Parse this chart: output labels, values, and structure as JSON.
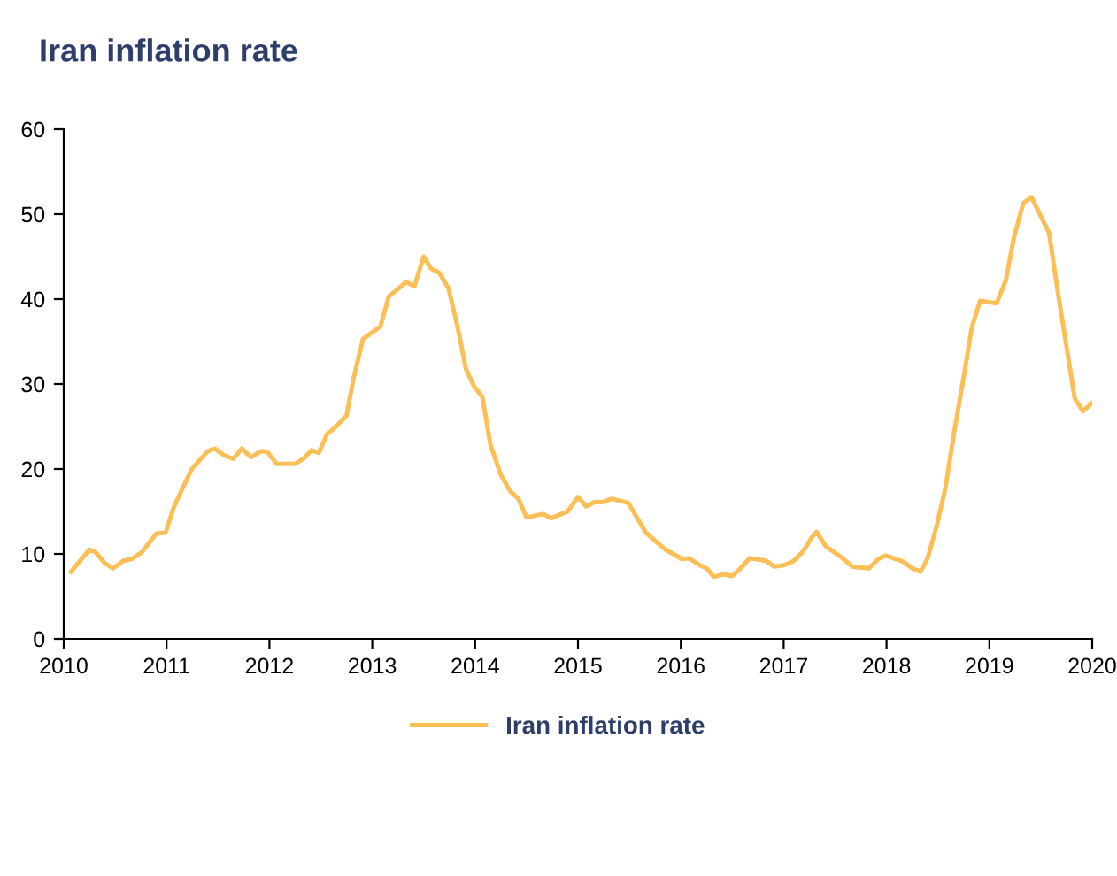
{
  "chart_data": {
    "type": "line",
    "title": "Iran inflation rate",
    "series": [
      {
        "name": "Iran inflation rate",
        "color": "#fbbf55",
        "x": [
          2010.07,
          2010.25,
          2010.31,
          2010.4,
          2010.48,
          2010.58,
          2010.66,
          2010.76,
          2010.9,
          2010.99,
          2011.07,
          2011.24,
          2011.4,
          2011.47,
          2011.56,
          2011.65,
          2011.73,
          2011.82,
          2011.92,
          2011.98,
          2012.07,
          2012.25,
          2012.33,
          2012.41,
          2012.48,
          2012.56,
          2012.64,
          2012.75,
          2012.82,
          2012.91,
          2013.08,
          2013.16,
          2013.33,
          2013.41,
          2013.5,
          2013.57,
          2013.65,
          2013.74,
          2013.83,
          2013.91,
          2013.99,
          2014.07,
          2014.15,
          2014.25,
          2014.34,
          2014.42,
          2014.5,
          2014.66,
          2014.74,
          2014.9,
          2015.0,
          2015.08,
          2015.16,
          2015.24,
          2015.33,
          2015.49,
          2015.66,
          2015.84,
          2016.01,
          2016.08,
          2016.18,
          2016.25,
          2016.32,
          2016.41,
          2016.5,
          2016.58,
          2016.67,
          2016.83,
          2016.91,
          2017.01,
          2017.1,
          2017.19,
          2017.27,
          2017.32,
          2017.41,
          2017.56,
          2017.67,
          2017.83,
          2017.92,
          2017.99,
          2018.16,
          2018.25,
          2018.33,
          2018.4,
          2018.49,
          2018.57,
          2018.66,
          2018.76,
          2018.83,
          2018.91,
          2019.07,
          2019.16,
          2019.24,
          2019.33,
          2019.41,
          2019.58,
          2019.67,
          2019.83,
          2019.91,
          2019.99
        ],
        "values": [
          7.9,
          10.5,
          10.2,
          8.9,
          8.3,
          9.2,
          9.4,
          10.2,
          12.4,
          12.5,
          15.5,
          19.9,
          22.1,
          22.4,
          21.6,
          21.2,
          22.4,
          21.4,
          22.1,
          22.0,
          20.6,
          20.6,
          21.2,
          22.2,
          21.9,
          24.1,
          24.9,
          26.3,
          30.8,
          35.3,
          36.8,
          40.3,
          42.0,
          41.5,
          45.0,
          43.6,
          43.1,
          41.3,
          36.7,
          31.8,
          29.7,
          28.5,
          22.8,
          19.3,
          17.4,
          16.5,
          14.3,
          14.7,
          14.2,
          15.0,
          16.7,
          15.6,
          16.1,
          16.1,
          16.5,
          16.0,
          12.5,
          10.6,
          9.4,
          9.5,
          8.7,
          8.3,
          7.3,
          7.6,
          7.4,
          8.3,
          9.5,
          9.2,
          8.5,
          8.7,
          9.2,
          10.3,
          11.9,
          12.6,
          10.9,
          9.6,
          8.5,
          8.3,
          9.4,
          9.8,
          9.1,
          8.3,
          7.9,
          9.5,
          13.4,
          17.6,
          24.5,
          31.5,
          36.7,
          39.8,
          39.5,
          42.2,
          47.3,
          51.3,
          52.0,
          47.8,
          40.5,
          28.3,
          26.8,
          27.7
        ]
      }
    ],
    "xlim": [
      2010,
      2020
    ],
    "xticks": [
      2010,
      2011,
      2012,
      2013,
      2014,
      2015,
      2016,
      2017,
      2018,
      2019,
      2020
    ],
    "ylim": [
      0,
      60
    ],
    "yticks": [
      0,
      10,
      20,
      30,
      40,
      50,
      60
    ],
    "grid": false,
    "legend": "bottom"
  }
}
